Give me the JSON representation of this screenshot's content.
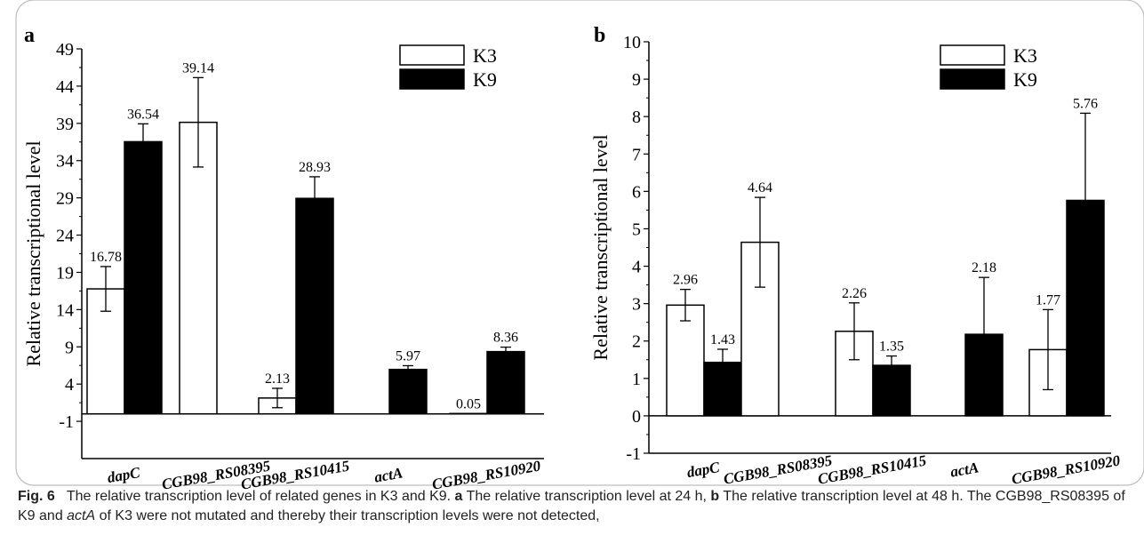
{
  "chart_data": [
    {
      "panel": "a",
      "type": "bar",
      "categories": [
        "dapC",
        "CGB98_RS08395",
        "CGB98_RS10415",
        "actA",
        "CGB98_RS10920"
      ],
      "series": [
        {
          "name": "K3",
          "color": "#ffffff",
          "values": [
            16.78,
            39.14,
            2.13,
            null,
            0.05
          ],
          "errors": [
            3.0,
            6.0,
            1.3,
            null,
            null
          ],
          "labels": [
            "16.78",
            "39.14",
            "2.13",
            null,
            "0.05"
          ]
        },
        {
          "name": "K9",
          "color": "#000000",
          "values": [
            36.54,
            null,
            28.93,
            5.97,
            8.36
          ],
          "errors": [
            2.4,
            null,
            2.9,
            0.5,
            0.6
          ],
          "labels": [
            "36.54",
            null,
            "28.93",
            "5.97",
            "8.36"
          ]
        }
      ],
      "ylabel": "Relative transcriptional level",
      "ylim": [
        -6,
        49
      ],
      "yticks": [
        "-1",
        "4",
        "9",
        "14",
        "19",
        "24",
        "29",
        "34",
        "39",
        "44",
        "49"
      ],
      "legend_position": "top-right"
    },
    {
      "panel": "b",
      "type": "bar",
      "categories": [
        "dapC",
        "CGB98_RS08395",
        "CGB98_RS10415",
        "actA",
        "CGB98_RS10920"
      ],
      "series": [
        {
          "name": "K3",
          "color": "#ffffff",
          "values": [
            2.96,
            4.64,
            2.26,
            null,
            1.77
          ],
          "errors": [
            0.42,
            1.2,
            0.76,
            null,
            1.07
          ],
          "labels": [
            "2.96",
            "4.64",
            "2.26",
            null,
            "1.77"
          ]
        },
        {
          "name": "K9",
          "color": "#000000",
          "values": [
            1.43,
            null,
            1.35,
            2.18,
            5.76
          ],
          "errors": [
            0.35,
            null,
            0.25,
            1.52,
            2.33
          ],
          "labels": [
            "1.43",
            null,
            "1.35",
            "2.18",
            "5.76"
          ]
        }
      ],
      "ylabel": "Relative transcriptional level",
      "ylim": [
        -1,
        10
      ],
      "yticks": [
        "-1",
        "0",
        "1",
        "2",
        "3",
        "4",
        "5",
        "6",
        "7",
        "8",
        "9",
        "10"
      ],
      "legend_position": "top-right"
    }
  ],
  "caption": {
    "fig": "Fig. 6",
    "part1": "The relative transcription level of related genes in K3 and K9. ",
    "a": "a",
    "part2": " The relative transcription level at 24 h, ",
    "b": "b",
    "part3": " The relative transcription level at 48 h. The CGB98_RS08395 of K9 and ",
    "gene": "actA",
    "part4": " of K3 were not mutated and thereby their transcription levels were not detected,"
  }
}
